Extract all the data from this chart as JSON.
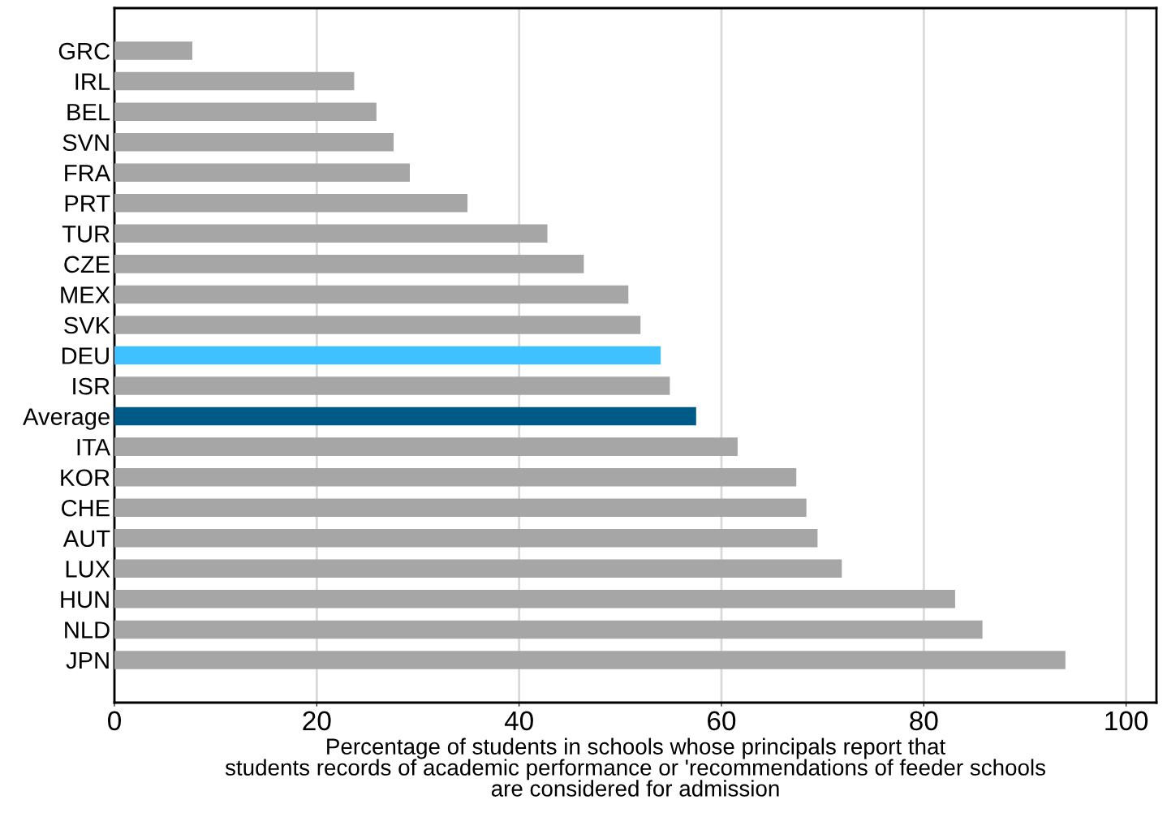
{
  "chart_data": {
    "type": "bar",
    "orientation": "horizontal",
    "xlabel": "Percentage of students in schools whose principals report that\nstudents records of academic performance or 'recommendations of feeder schools\nare considered for admission",
    "categories": [
      "GRC",
      "IRL",
      "BEL",
      "SVN",
      "FRA",
      "PRT",
      "TUR",
      "CZE",
      "MEX",
      "SVK",
      "DEU",
      "ISR",
      "Average",
      "ITA",
      "KOR",
      "CHE",
      "AUT",
      "LUX",
      "HUN",
      "NLD",
      "JPN"
    ],
    "values": [
      7.7,
      23.7,
      25.9,
      27.6,
      29.2,
      34.9,
      42.8,
      46.4,
      50.8,
      52.0,
      54.0,
      54.9,
      57.5,
      61.6,
      67.4,
      68.4,
      69.5,
      71.9,
      83.1,
      85.8,
      94.0
    ],
    "colors": [
      "#a6a6a6",
      "#a6a6a6",
      "#a6a6a6",
      "#a6a6a6",
      "#a6a6a6",
      "#a6a6a6",
      "#a6a6a6",
      "#a6a6a6",
      "#a6a6a6",
      "#a6a6a6",
      "#3fc1ff",
      "#a6a6a6",
      "#005a87",
      "#a6a6a6",
      "#a6a6a6",
      "#a6a6a6",
      "#a6a6a6",
      "#a6a6a6",
      "#a6a6a6",
      "#a6a6a6",
      "#a6a6a6"
    ],
    "xlim": [
      0,
      103
    ],
    "xticks": [
      0,
      20,
      40,
      60,
      80,
      100
    ],
    "grid": "x",
    "legend": false
  }
}
